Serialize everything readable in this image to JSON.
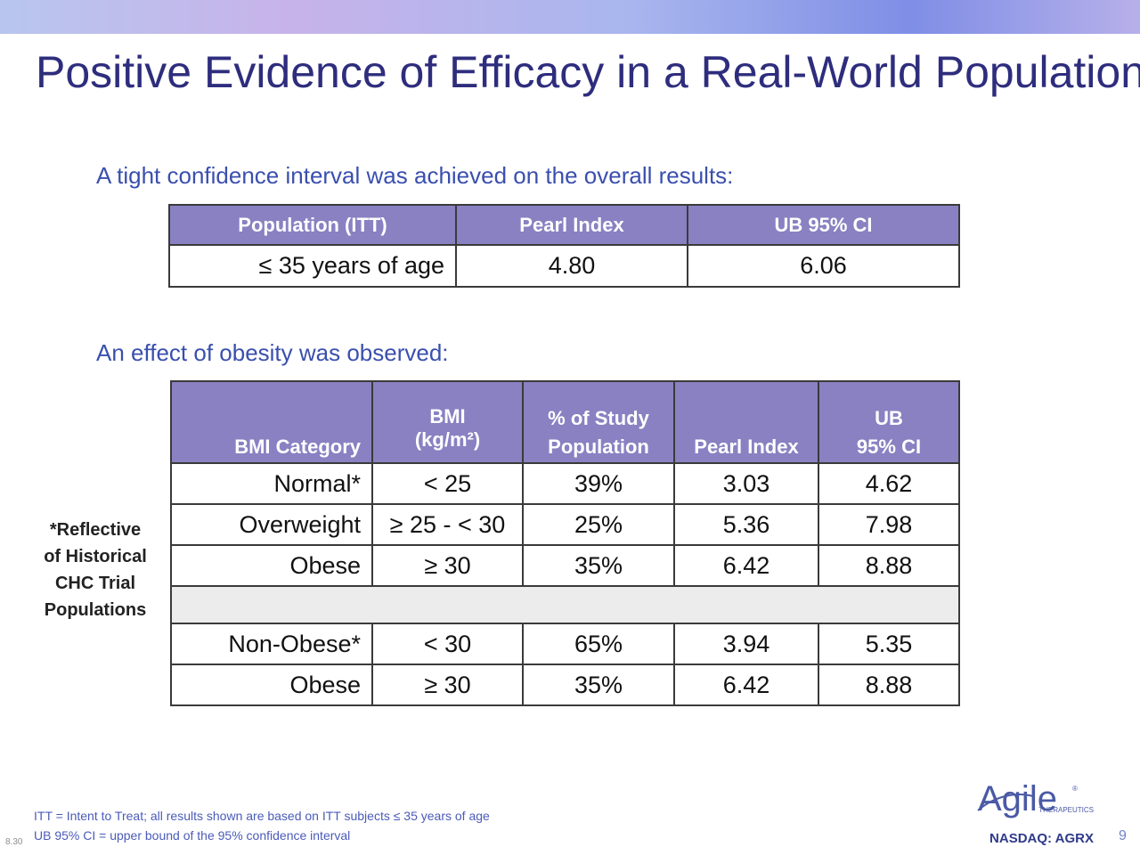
{
  "title": "Positive Evidence of Efficacy in a Real-World Population",
  "section1": {
    "lead": "A tight confidence interval was achieved on the overall results:",
    "headers": [
      "Population (ITT)",
      "Pearl Index",
      "UB 95% CI"
    ],
    "row": [
      "≤ 35 years of age",
      "4.80",
      "6.06"
    ]
  },
  "section2": {
    "lead": "An effect of obesity was observed:",
    "headers": {
      "category": "BMI Category",
      "bmi_line1": "BMI",
      "bmi_line2": "(kg/m²)",
      "pop_line1": "% of Study",
      "pop_line2": "Population",
      "pearl": "Pearl Index",
      "ub_line1": "UB",
      "ub_line2": "95% CI"
    },
    "rows": [
      [
        "Normal*",
        "< 25",
        "39%",
        "3.03",
        "4.62"
      ],
      [
        "Overweight",
        "≥ 25 - < 30",
        "25%",
        "5.36",
        "7.98"
      ],
      [
        "Obese",
        "≥ 30",
        "35%",
        "6.42",
        "8.88"
      ],
      [
        "Non-Obese*",
        "< 30",
        "65%",
        "3.94",
        "5.35"
      ],
      [
        "Obese",
        "≥ 30",
        "35%",
        "6.42",
        "8.88"
      ]
    ]
  },
  "side_note": [
    "*Reflective",
    "of Historical",
    "CHC Trial",
    "Populations"
  ],
  "footnotes": [
    "ITT = Intent to Treat; all results shown  are based on ITT subjects ≤ 35 years of age",
    "UB 95% CI = upper bound of the 95% confidence interval"
  ],
  "version": "8.30",
  "page_number": "9",
  "logo": {
    "name": "Agile",
    "registered": "®",
    "subtitle": "THERAPEUTICS",
    "ticker": "NASDAQ: AGRX",
    "color": "#4a5aa5"
  },
  "colors": {
    "title": "#2e2d7d",
    "lead": "#3a4fae",
    "header_fill": "#8981c2"
  }
}
